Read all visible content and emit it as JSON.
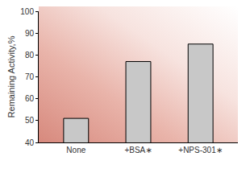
{
  "chart_data": {
    "type": "bar",
    "categories": [
      "None",
      "+BSA∗",
      "+NPS-301∗"
    ],
    "values": [
      51,
      77,
      85
    ],
    "color": "#c8c8c8",
    "y_label": "Remaining Activity,%",
    "ylim": [
      40,
      100
    ],
    "yticks": [
      40,
      50,
      60,
      70,
      80,
      90,
      100
    ],
    "grid": false
  }
}
